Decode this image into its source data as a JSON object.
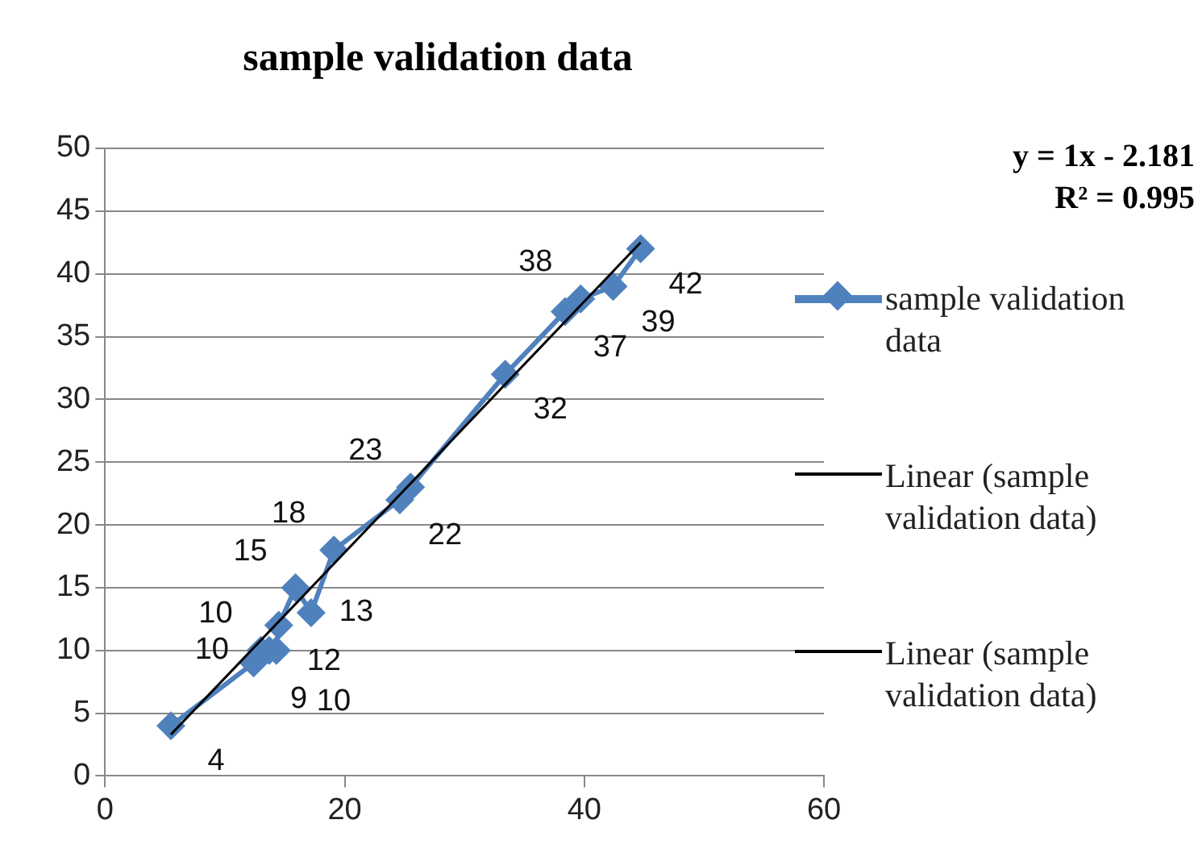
{
  "chart_data": {
    "type": "line",
    "title": "sample validation data",
    "x": [
      5.5,
      12.4,
      13,
      13.7,
      14.3,
      14.5,
      15.9,
      17.2,
      19.1,
      24.6,
      25.5,
      33.4,
      38.4,
      39.7,
      42.4,
      44.7
    ],
    "series": [
      {
        "name": "sample validation data",
        "color": "#4f81bd",
        "marker": "diamond",
        "values": [
          4,
          9,
          10,
          10,
          10,
          12,
          15,
          13,
          18,
          22,
          23,
          32,
          37,
          38,
          39,
          42
        ],
        "value_labels": [
          "4",
          "9",
          "10",
          "10",
          "10",
          "12",
          "15",
          "13",
          "18",
          "22",
          "23",
          "32",
          "37",
          "38",
          "39",
          "42"
        ]
      },
      {
        "name": "Linear (sample validation data)",
        "color": "#000000",
        "type": "line",
        "marker": "none",
        "x": [
          5.5,
          44.7
        ],
        "values": [
          3.3,
          42.5
        ]
      },
      {
        "name": "Linear (sample validation data)",
        "color": "#000000",
        "type": "line",
        "marker": "none",
        "values": [
          null,
          null,
          null,
          null,
          null,
          null,
          null,
          null,
          null,
          null,
          null,
          null,
          null,
          null,
          null,
          null
        ]
      }
    ],
    "xlim": [
      0,
      60
    ],
    "xticks": [
      0,
      20,
      40,
      60
    ],
    "ylim": [
      0,
      50
    ],
    "yticks": [
      0,
      5,
      10,
      15,
      20,
      25,
      30,
      35,
      40,
      45,
      50
    ],
    "grid": "y",
    "legend": "right",
    "annotations": [
      "y = 1x - 2.181",
      "R² = 0.995"
    ]
  }
}
